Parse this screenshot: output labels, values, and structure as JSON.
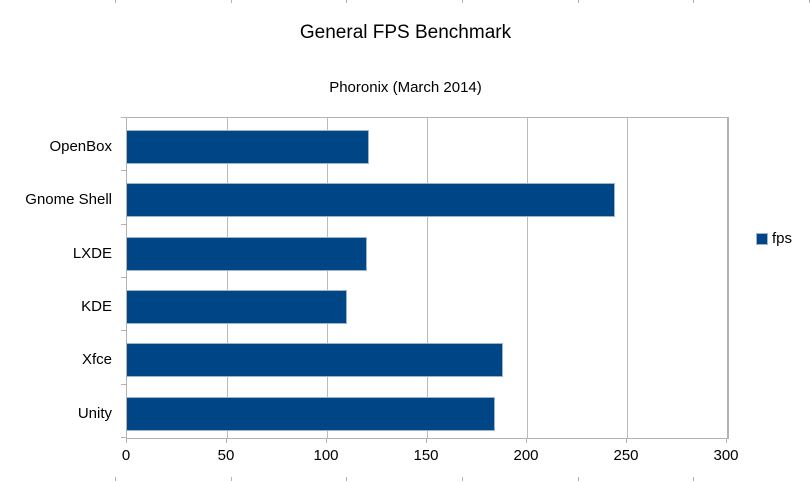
{
  "chart_data": {
    "type": "bar",
    "orientation": "horizontal",
    "title": "General FPS Benchmark",
    "subtitle": "Phoronix (March 2014)",
    "categories": [
      "OpenBox",
      "Gnome Shell",
      "LXDE",
      "KDE",
      "Xfce",
      "Unity"
    ],
    "values": [
      121,
      244,
      120,
      110,
      188,
      184
    ],
    "series_name": "fps",
    "xlabel": "",
    "ylabel": "",
    "xlim": [
      0,
      300
    ],
    "x_ticks": [
      0,
      50,
      100,
      150,
      200,
      250,
      300
    ],
    "grid": true,
    "legend_position": "right",
    "bar_color": "#004586",
    "grid_color": "#bcbcbc",
    "axis_color": "#b3b3b3",
    "text_color": "#000000"
  }
}
